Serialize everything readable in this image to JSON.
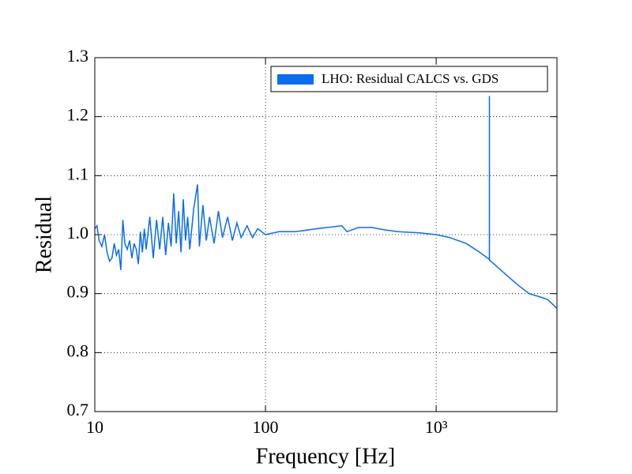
{
  "chart_data": {
    "type": "line",
    "xlabel": "Frequency [Hz]",
    "ylabel": "Residual",
    "xscale": "log",
    "grid": true,
    "legend": "upper right",
    "xlim": [
      10,
      5100
    ],
    "ylim": [
      0.7,
      1.3
    ],
    "xticks": [
      10,
      100,
      {
        "value": 1000,
        "label": "10³"
      }
    ],
    "yticks": [
      0.7,
      0.8,
      0.9,
      {
        "value": 1,
        "label": "1.0"
      },
      1.1,
      1.2,
      1.3
    ],
    "x": [
      10,
      10.3,
      10.6,
      11,
      11.4,
      11.8,
      12.2,
      12.6,
      13,
      13.4,
      13.8,
      14.2,
      14.6,
      15,
      15.5,
      16,
      16.5,
      17,
      17.5,
      18,
      18.5,
      19,
      19.5,
      20,
      21,
      22,
      23,
      24,
      25,
      26,
      27,
      28,
      29,
      30,
      31,
      32,
      33,
      34,
      35,
      36,
      38,
      40,
      41,
      43,
      45,
      47,
      50,
      53,
      56,
      60,
      64,
      68,
      72,
      78,
      84,
      90,
      100,
      120,
      150,
      200,
      280,
      300,
      350,
      420,
      500,
      600,
      800,
      1000,
      1200,
      1500,
      1800,
      2050,
      2051,
      2052,
      2500,
      3000,
      3500,
      4000,
      4500,
      5100
    ],
    "series": [
      {
        "name": "LHO: Residual CALCS vs. GDS",
        "color": "#0a6cf0",
        "values": [
          1.01,
          1.015,
          0.99,
          0.98,
          1.0,
          0.97,
          0.955,
          0.96,
          0.985,
          0.965,
          0.975,
          0.94,
          1.025,
          0.985,
          0.975,
          0.99,
          0.96,
          0.985,
          0.975,
          0.95,
          1.005,
          0.97,
          1.01,
          0.975,
          1.03,
          0.96,
          1.025,
          0.975,
          1.03,
          0.965,
          1.02,
          0.98,
          1.07,
          0.985,
          1.04,
          0.97,
          1.06,
          0.99,
          1.03,
          0.975,
          1.045,
          1.085,
          0.98,
          1.05,
          0.99,
          1.03,
          0.985,
          1.04,
          0.995,
          1.03,
          0.99,
          1.02,
          0.995,
          1.015,
          0.995,
          1.01,
          1.0,
          1.005,
          1.005,
          1.01,
          1.015,
          1.005,
          1.012,
          1.012,
          1.008,
          1.005,
          1.003,
          1.0,
          0.995,
          0.985,
          0.97,
          0.958,
          1.235,
          0.957,
          0.935,
          0.915,
          0.9,
          0.895,
          0.89,
          0.875
        ]
      }
    ]
  }
}
